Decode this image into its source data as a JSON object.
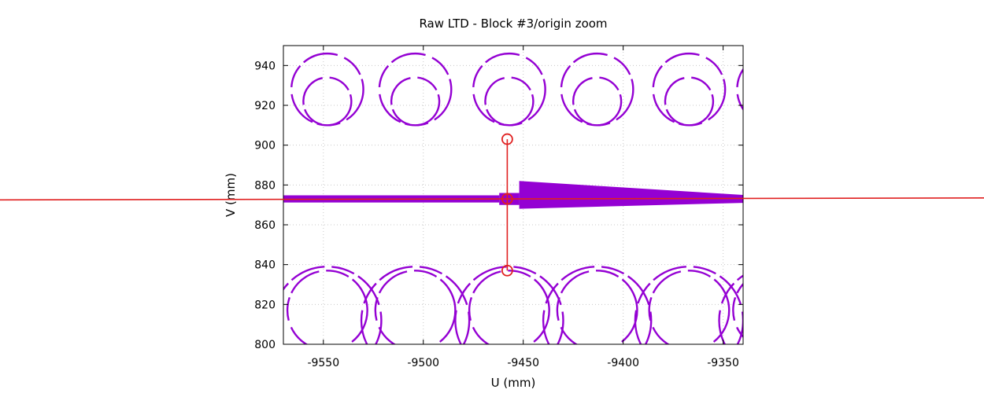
{
  "chart_data": {
    "type": "scatter",
    "title": "Raw LTD - Block #3/origin zoom",
    "xlabel": "U (mm)",
    "ylabel": "V (mm)",
    "xlim": [
      -9570,
      -9340
    ],
    "ylim": [
      800,
      950
    ],
    "xticks": [
      -9550,
      -9500,
      -9450,
      -9400,
      -9350
    ],
    "yticks": [
      800,
      820,
      840,
      860,
      880,
      900,
      920,
      940
    ],
    "grid": true,
    "colors": {
      "points": "#9400d3",
      "overlay": "#e02020",
      "grid": "#c8c8c8"
    },
    "circle_pattern": {
      "period_u": 45,
      "centers_u": [
        -9548,
        -9504,
        -9457,
        -9413,
        -9367,
        -9325
      ],
      "rings_v": [
        {
          "center_v": 922,
          "radius": 12
        },
        {
          "center_v": 928,
          "radius": 18
        },
        {
          "center_v": 817,
          "radius": 20
        },
        {
          "center_v": 812,
          "radius": 27
        }
      ]
    },
    "band": {
      "v": 873,
      "segments": [
        {
          "u_from": -9570,
          "u_to": -9462,
          "half_width": 1.8
        },
        {
          "u_from": -9462,
          "u_to": -9452,
          "half_width": 3.0
        },
        {
          "u_from": -9452,
          "u_to": -9340,
          "half_width_start": 9.0,
          "half_width_end": 2.0
        }
      ]
    },
    "overlay": {
      "horizontal_line_v": [
        872.5,
        873.5
      ],
      "vertical_line_u": -9458,
      "markers": [
        {
          "u": -9458,
          "v": 903
        },
        {
          "u": -9458,
          "v": 873
        },
        {
          "u": -9458,
          "v": 837
        }
      ]
    }
  }
}
